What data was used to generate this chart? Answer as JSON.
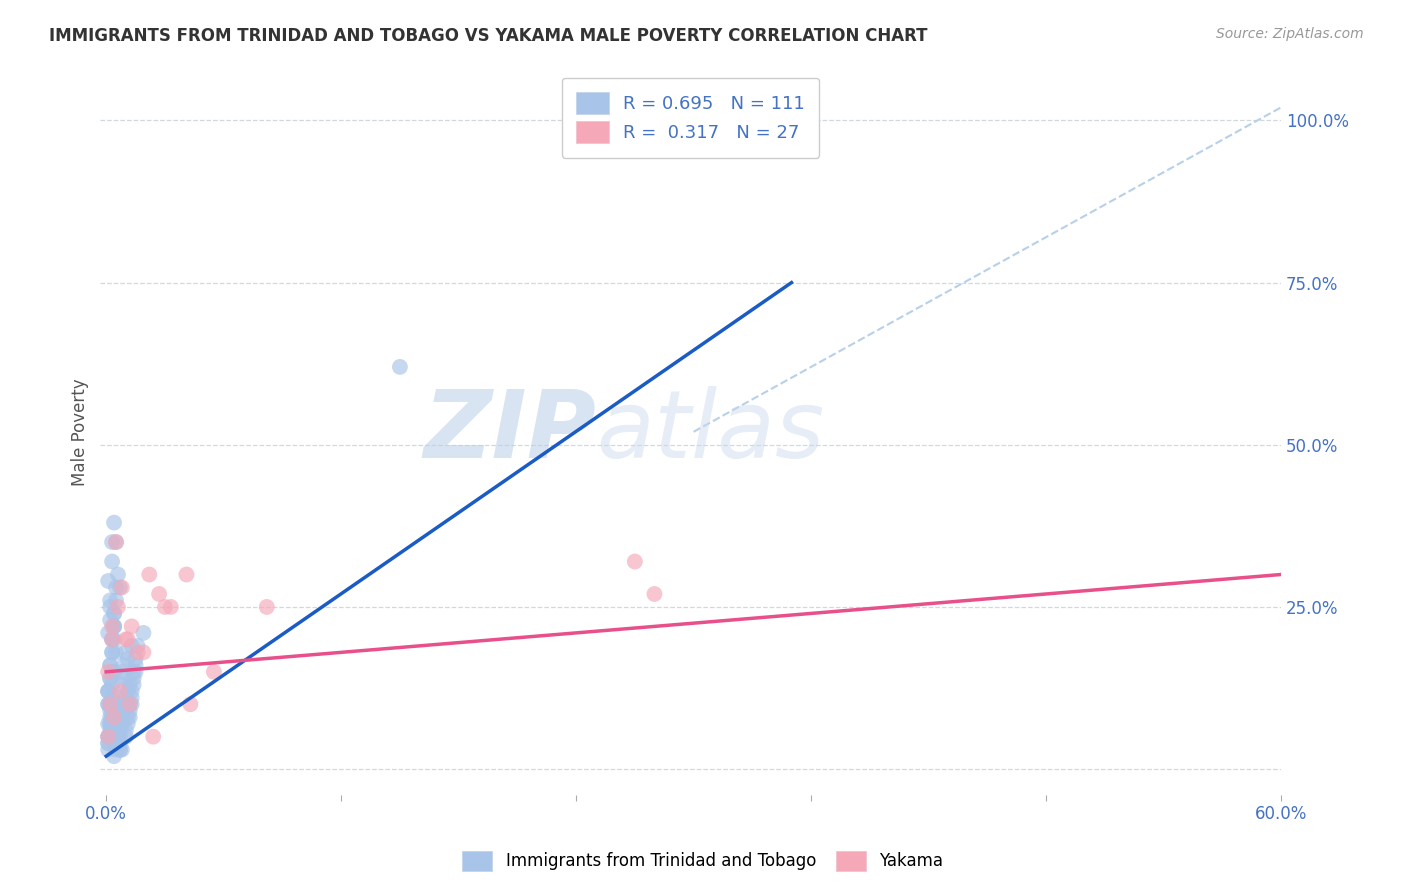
{
  "title": "IMMIGRANTS FROM TRINIDAD AND TOBAGO VS YAKAMA MALE POVERTY CORRELATION CHART",
  "source": "Source: ZipAtlas.com",
  "ylabel": "Male Poverty",
  "xlim": [
    -0.003,
    0.6
  ],
  "ylim": [
    -0.04,
    1.08
  ],
  "blue_R": 0.695,
  "blue_N": 111,
  "pink_R": 0.317,
  "pink_N": 27,
  "blue_color": "#a8c4e8",
  "pink_color": "#f4a8b8",
  "blue_line_color": "#1a5bc4",
  "pink_line_color": "#e8508c",
  "dashed_line_color": "#b8d0e8",
  "watermark_zip": "ZIP",
  "watermark_atlas": "atlas",
  "legend_label_blue": "Immigrants from Trinidad and Tobago",
  "legend_label_pink": "Yakama",
  "blue_scatter_x": [
    0.001,
    0.002,
    0.001,
    0.003,
    0.005,
    0.002,
    0.004,
    0.001,
    0.002,
    0.004,
    0.006,
    0.007,
    0.005,
    0.008,
    0.01,
    0.011,
    0.013,
    0.012,
    0.002,
    0.003,
    0.001,
    0.001,
    0.003,
    0.005,
    0.006,
    0.008,
    0.009,
    0.01,
    0.011,
    0.013,
    0.001,
    0.002,
    0.002,
    0.001,
    0.003,
    0.003,
    0.004,
    0.004,
    0.005,
    0.005,
    0.006,
    0.007,
    0.008,
    0.009,
    0.01,
    0.012,
    0.014,
    0.015,
    0.016,
    0.019,
    0.001,
    0.001,
    0.002,
    0.002,
    0.003,
    0.003,
    0.004,
    0.004,
    0.005,
    0.005,
    0.006,
    0.006,
    0.007,
    0.007,
    0.008,
    0.008,
    0.009,
    0.009,
    0.01,
    0.01,
    0.011,
    0.011,
    0.012,
    0.012,
    0.013,
    0.013,
    0.014,
    0.014,
    0.015,
    0.015,
    0.001,
    0.001,
    0.002,
    0.002,
    0.003,
    0.003,
    0.004,
    0.004,
    0.005,
    0.005,
    0.006,
    0.006,
    0.007,
    0.007,
    0.008,
    0.002,
    0.002,
    0.003,
    0.003,
    0.004,
    0.15,
    0.001,
    0.001,
    0.002,
    0.002,
    0.003,
    0.003,
    0.004,
    0.004,
    0.005,
    0.005
  ],
  "blue_scatter_y": [
    0.05,
    0.08,
    0.12,
    0.15,
    0.18,
    0.1,
    0.2,
    0.07,
    0.25,
    0.22,
    0.3,
    0.28,
    0.35,
    0.15,
    0.18,
    0.12,
    0.1,
    0.08,
    0.05,
    0.06,
    0.04,
    0.03,
    0.07,
    0.09,
    0.11,
    0.13,
    0.16,
    0.14,
    0.17,
    0.19,
    0.21,
    0.23,
    0.26,
    0.29,
    0.32,
    0.35,
    0.38,
    0.08,
    0.06,
    0.05,
    0.04,
    0.03,
    0.07,
    0.09,
    0.11,
    0.13,
    0.15,
    0.17,
    0.19,
    0.21,
    0.1,
    0.12,
    0.14,
    0.16,
    0.18,
    0.2,
    0.22,
    0.24,
    0.08,
    0.06,
    0.05,
    0.04,
    0.03,
    0.06,
    0.07,
    0.08,
    0.09,
    0.1,
    0.05,
    0.06,
    0.07,
    0.08,
    0.09,
    0.1,
    0.11,
    0.12,
    0.13,
    0.14,
    0.15,
    0.16,
    0.1,
    0.12,
    0.14,
    0.16,
    0.18,
    0.2,
    0.22,
    0.24,
    0.26,
    0.28,
    0.08,
    0.06,
    0.05,
    0.04,
    0.03,
    0.07,
    0.09,
    0.11,
    0.13,
    0.15,
    0.62,
    0.05,
    0.04,
    0.06,
    0.07,
    0.08,
    0.09,
    0.1,
    0.02,
    0.03,
    0.04
  ],
  "pink_scatter_x": [
    0.001,
    0.003,
    0.005,
    0.006,
    0.008,
    0.01,
    0.013,
    0.016,
    0.022,
    0.027,
    0.033,
    0.043,
    0.055,
    0.082,
    0.002,
    0.003,
    0.011,
    0.019,
    0.03,
    0.041,
    0.27,
    0.28,
    0.001,
    0.004,
    0.007,
    0.012,
    0.024
  ],
  "pink_scatter_y": [
    0.15,
    0.2,
    0.35,
    0.25,
    0.28,
    0.2,
    0.22,
    0.18,
    0.3,
    0.27,
    0.25,
    0.1,
    0.15,
    0.25,
    0.1,
    0.22,
    0.2,
    0.18,
    0.25,
    0.3,
    0.32,
    0.27,
    0.05,
    0.08,
    0.12,
    0.1,
    0.05
  ],
  "blue_trend_x": [
    0.0,
    0.35
  ],
  "blue_trend_y": [
    0.02,
    0.75
  ],
  "pink_trend_x": [
    0.0,
    0.6
  ],
  "pink_trend_y": [
    0.15,
    0.3
  ],
  "dashed_trend_x": [
    0.3,
    0.6
  ],
  "dashed_trend_y": [
    0.52,
    1.02
  ],
  "xtick_positions": [
    0.0,
    0.12,
    0.24,
    0.36,
    0.48,
    0.6
  ],
  "ytick_positions": [
    0.0,
    0.25,
    0.5,
    0.75,
    1.0
  ],
  "ytick_labels_right": [
    "",
    "25.0%",
    "50.0%",
    "75.0%",
    "100.0%"
  ]
}
